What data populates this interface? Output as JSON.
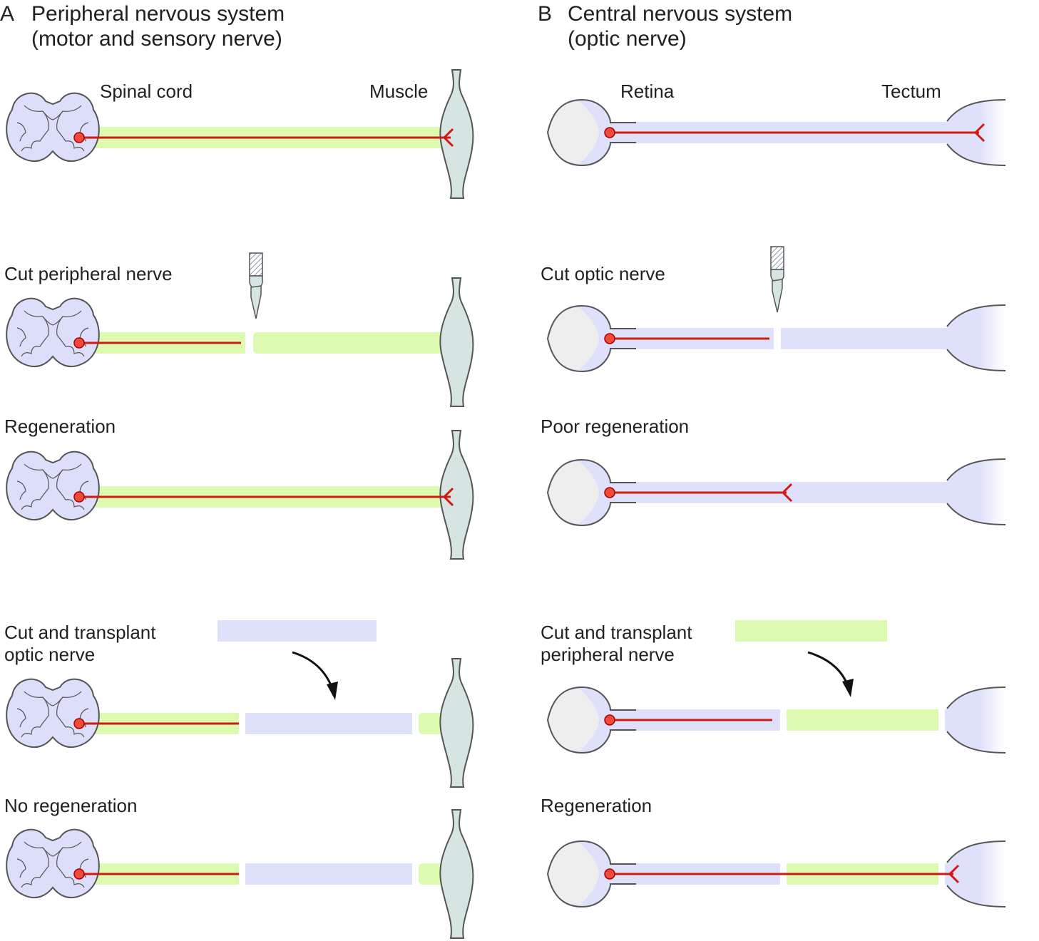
{
  "colors": {
    "peripheral_nerve": "#ddfbb0",
    "optic_nerve": "#dfe1fb",
    "axon": "#d11a12",
    "soma": "#ef4a3c",
    "spinal_cord_fill": "#dcdefa",
    "muscle_fill": "#d6e4e2",
    "outline": "#555555",
    "eye_lens": "#eeeeee",
    "tectum_fill": "#dfe1fb"
  },
  "panel_a": {
    "letter": "A",
    "title_line1": "Peripheral nervous system",
    "title_line2": "(motor and sensory nerve)",
    "source_label": "Spinal cord",
    "target_label": "Muscle",
    "conditions": [
      "Cut peripheral nerve",
      "Regeneration",
      "Cut and transplant",
      "optic nerve",
      "No regeneration"
    ]
  },
  "panel_b": {
    "letter": "B",
    "title_line1": "Central nervous system",
    "title_line2": "(optic nerve)",
    "source_label": "Retina",
    "target_label": "Tectum",
    "conditions": [
      "Cut optic nerve",
      "Poor regeneration",
      "Cut and transplant",
      "peripheral nerve",
      "Regeneration"
    ]
  },
  "icons": {
    "scalpel": "scalpel-icon",
    "arrow": "curved-arrow-icon"
  }
}
